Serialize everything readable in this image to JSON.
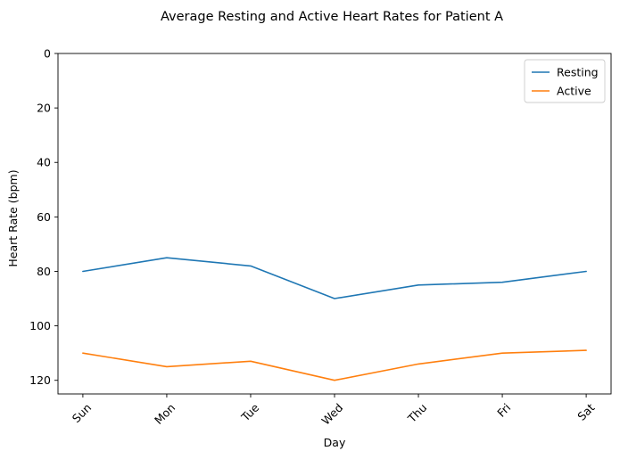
{
  "chart_data": {
    "type": "line",
    "title": "Average Resting and Active Heart Rates for Patient A",
    "xlabel": "Day",
    "ylabel": "Heart Rate (bpm)",
    "categories": [
      "Sun",
      "Mon",
      "Tue",
      "Wed",
      "Thu",
      "Fri",
      "Sat"
    ],
    "y_ticks": [
      0,
      20,
      40,
      60,
      80,
      100,
      120
    ],
    "ylim": [
      125,
      0
    ],
    "y_inverted": true,
    "grid": false,
    "legend_position": "upper-right",
    "series": [
      {
        "name": "Resting",
        "color": "#1f77b4",
        "values": [
          80,
          75,
          78,
          90,
          85,
          84,
          80
        ]
      },
      {
        "name": "Active",
        "color": "#ff7f0e",
        "values": [
          110,
          115,
          113,
          120,
          114,
          110,
          109
        ]
      }
    ]
  }
}
